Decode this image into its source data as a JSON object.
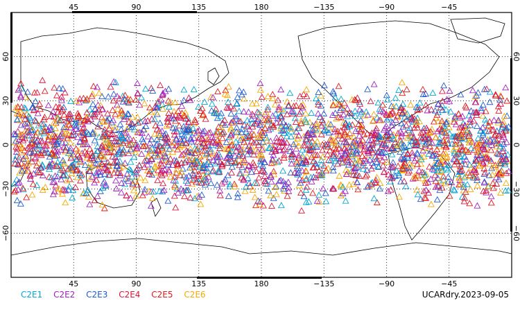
{
  "map": {
    "projection": "cylindrical equidistant, centred 180",
    "lon_ticks_top": [
      "45",
      "90",
      "135",
      "180",
      "−135",
      "−90",
      "−45"
    ],
    "lon_ticks_bottom": [
      "45",
      "90",
      "135",
      "180",
      "−135",
      "−90",
      "−45"
    ],
    "lat_ticks_left": [
      "60",
      "30",
      "0",
      "−30",
      "−60"
    ],
    "lat_ticks_right": [
      "60",
      "30",
      "0",
      "−30",
      "−60"
    ],
    "grid": "dotted",
    "observation_lat_range": [
      -45,
      45
    ]
  },
  "legend": {
    "items": [
      {
        "label": "C2E1",
        "color": "#00a6d6"
      },
      {
        "label": "C2E2",
        "color": "#a020c0"
      },
      {
        "label": "C2E3",
        "color": "#1e5ad2"
      },
      {
        "label": "C2E4",
        "color": "#dc143c"
      },
      {
        "label": "C2E5",
        "color": "#e01818"
      },
      {
        "label": "C2E6",
        "color": "#f5a800"
      }
    ]
  },
  "stamp": {
    "text": "UCARdry.2023-09-05"
  },
  "marker_shape": "open-triangle"
}
